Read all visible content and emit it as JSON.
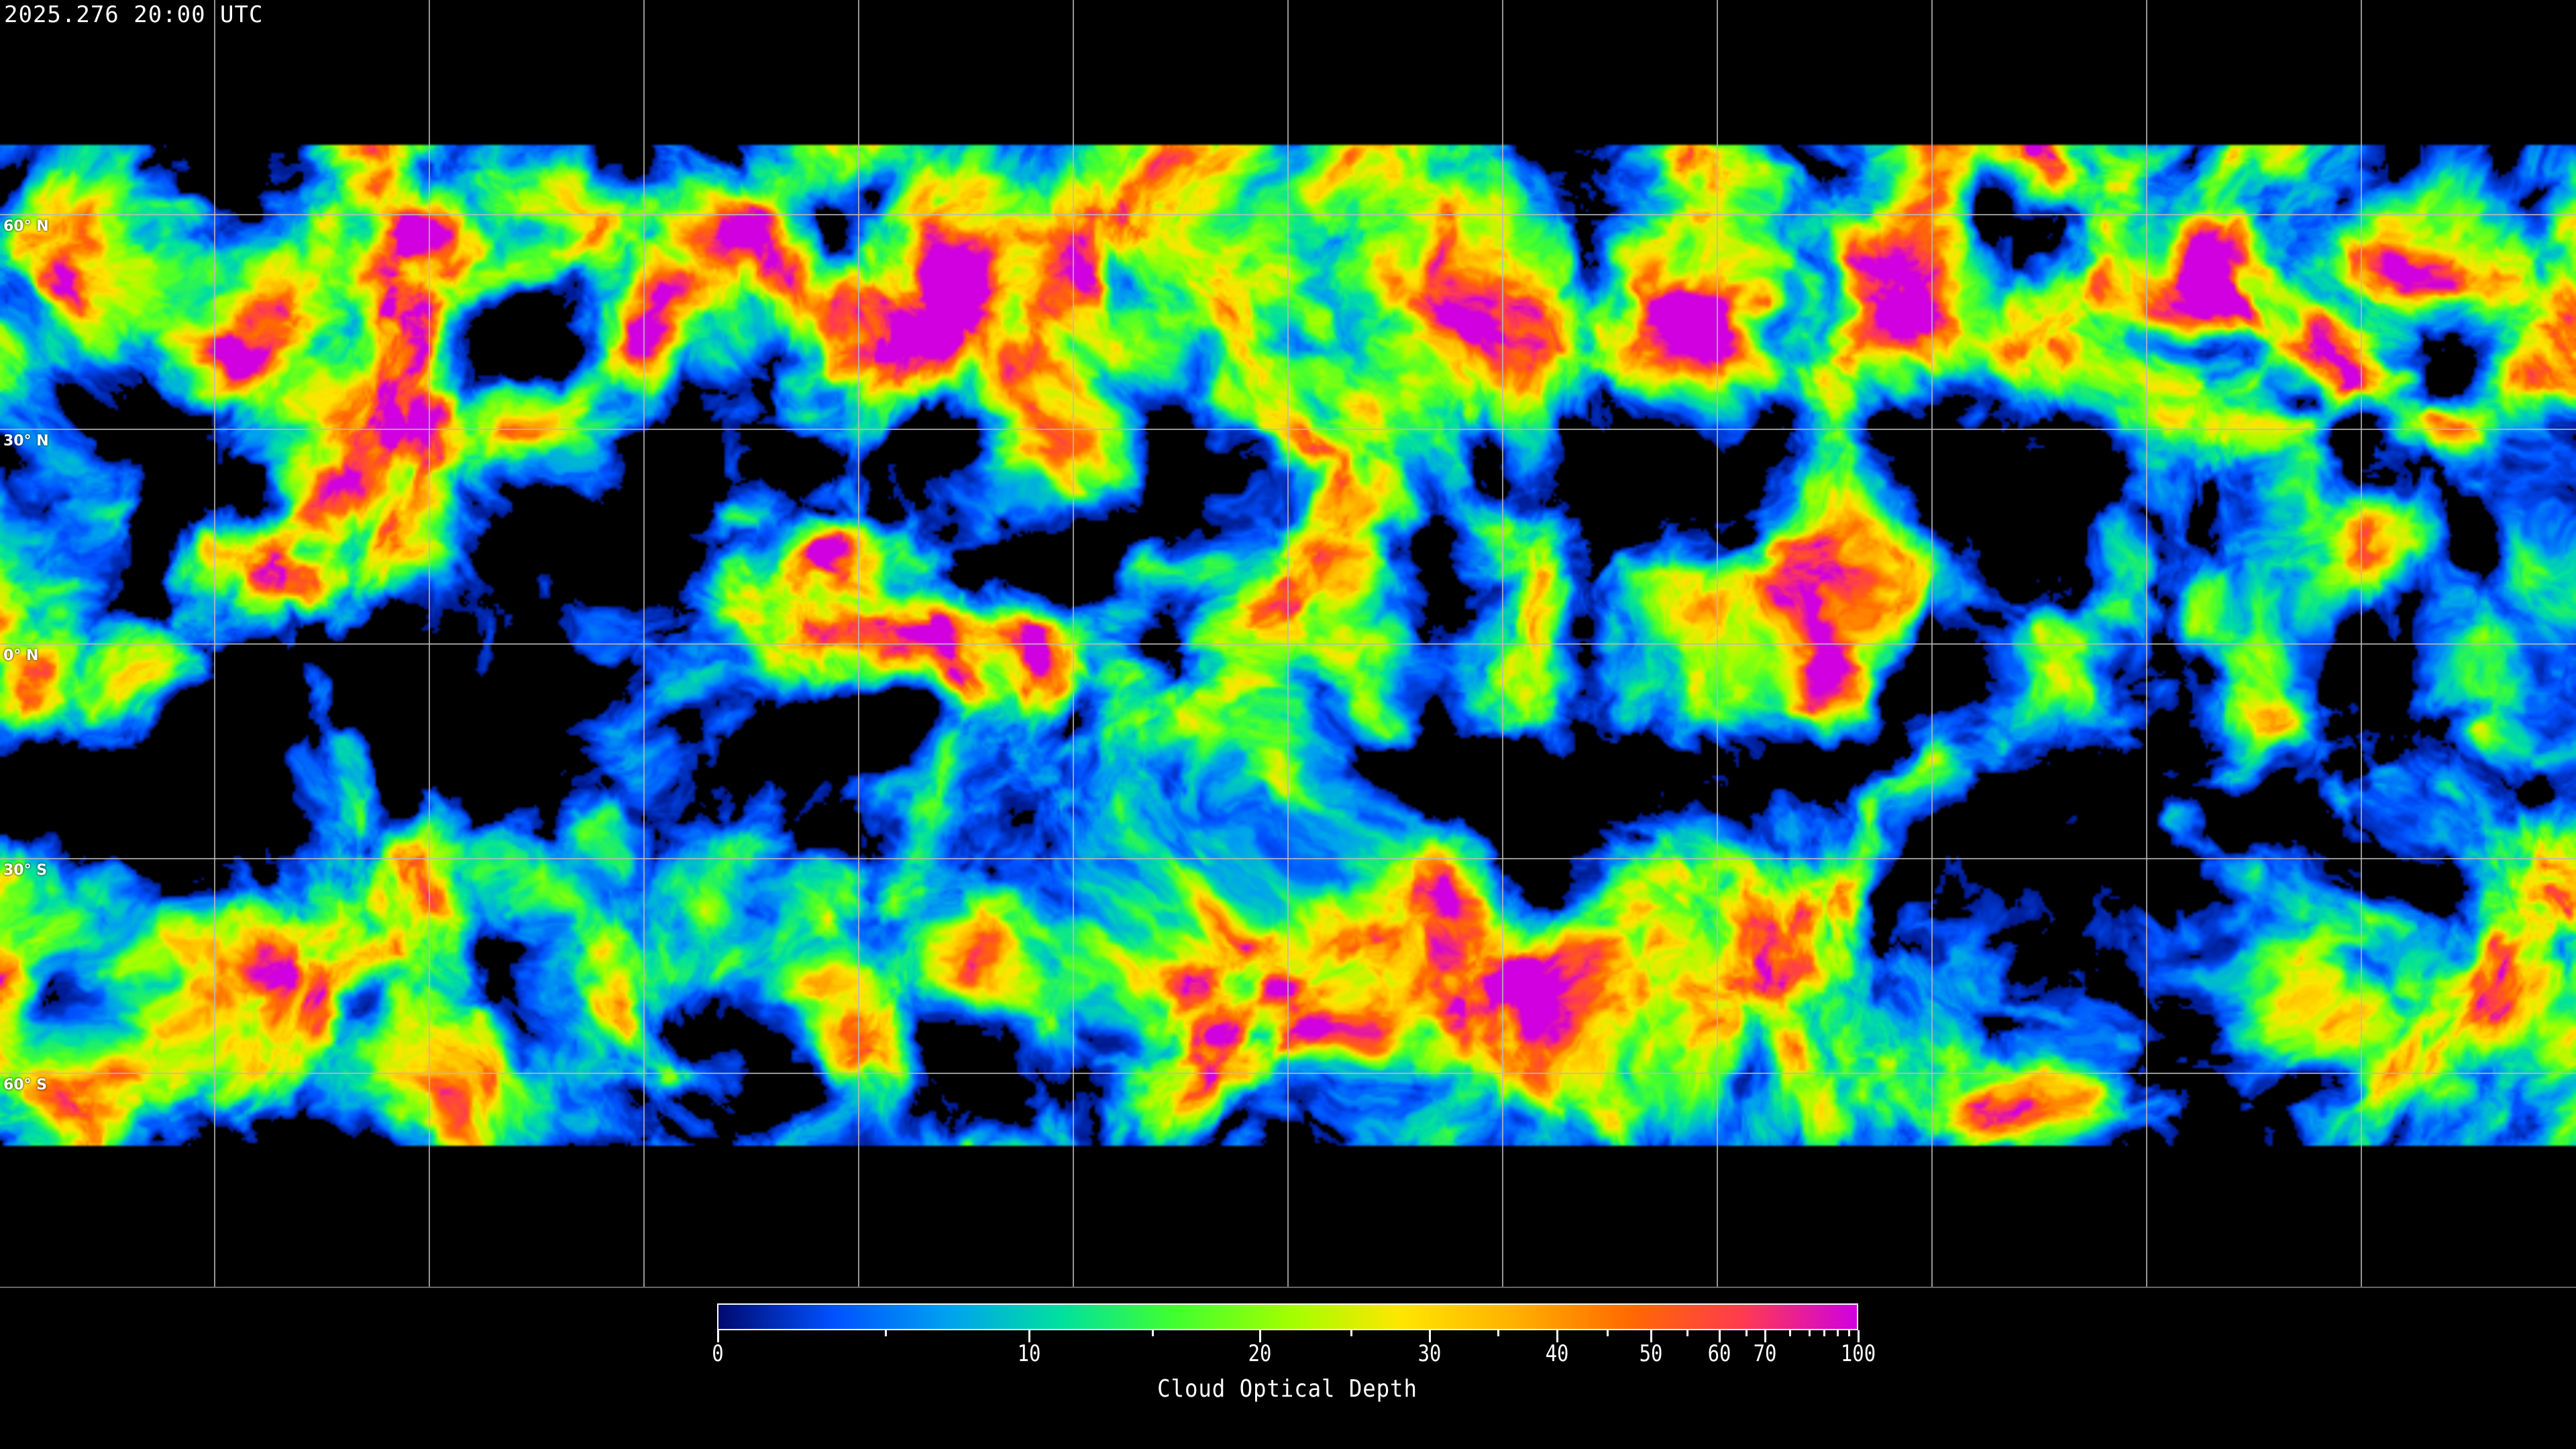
{
  "header": {
    "timestamp": "2025.276 20:00 UTC"
  },
  "map": {
    "projection": "equirectangular",
    "grid_spacing_deg": 30,
    "data_coverage_lat": [
      70,
      -70
    ],
    "clear_sky_color": "#000000",
    "coastline_color": "#ffffff",
    "lat_labels": [
      {
        "lat": 60,
        "label": "60° N"
      },
      {
        "lat": 30,
        "label": "30° N"
      },
      {
        "lat": 0,
        "label": "0° N"
      },
      {
        "lat": -30,
        "label": "30° S"
      },
      {
        "lat": -60,
        "label": "60° S"
      }
    ]
  },
  "colorbar": {
    "label": "Cloud Optical Depth",
    "range": [
      0,
      100
    ],
    "major_ticks": [
      "0",
      "10",
      "20",
      "30",
      "40",
      "50",
      "60",
      "70",
      "100"
    ],
    "minor_ticks": [
      5,
      15,
      25,
      35,
      45,
      55,
      65,
      75,
      80,
      85,
      90,
      95
    ],
    "colormap": [
      "#000a6e",
      "#0050ff",
      "#00a0f0",
      "#00e0a0",
      "#40ff30",
      "#a0ff00",
      "#ffe600",
      "#ffb000",
      "#ff6a00",
      "#ff3a50",
      "#d000e0"
    ]
  }
}
